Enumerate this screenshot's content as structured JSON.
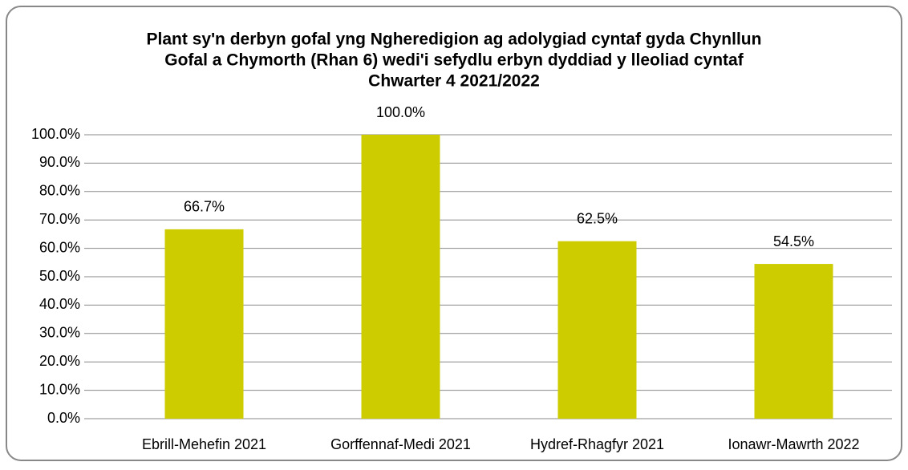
{
  "chart_data": {
    "type": "bar",
    "title": [
      "Plant sy'n derbyn gofal yng Ngheredigion ag adolygiad cyntaf gyda Chynllun",
      "Gofal a Chymorth (Rhan 6) wedi'i sefydlu erbyn dyddiad y lleoliad cyntaf",
      "Chwarter 4  2021/2022"
    ],
    "categories": [
      "Ebrill-Mehefin 2021",
      "Gorffennaf-Medi 2021",
      "Hydref-Rhagfyr 2021",
      "Ionawr-Mawrth 2022"
    ],
    "values": [
      66.7,
      100,
      62.5,
      54.5
    ],
    "value_labels": [
      "66.7%",
      "100.0%",
      "62.5%",
      "54.5%"
    ],
    "color": "#cccc00",
    "ylim": [
      0,
      100
    ],
    "yticks": [
      {
        "value": 0,
        "label": "0.0%"
      },
      {
        "value": 10,
        "label": "10.0%"
      },
      {
        "value": 20,
        "label": "20.0%"
      },
      {
        "value": 30,
        "label": "30.0%"
      },
      {
        "value": 40,
        "label": "40.0%"
      },
      {
        "value": 50,
        "label": "50.0%"
      },
      {
        "value": 60,
        "label": "60.0%"
      },
      {
        "value": 70,
        "label": "70.0%"
      },
      {
        "value": 80,
        "label": "80.0%"
      },
      {
        "value": 90,
        "label": "90.0%"
      },
      {
        "value": 100,
        "label": "100.0%"
      }
    ],
    "grid": true
  }
}
